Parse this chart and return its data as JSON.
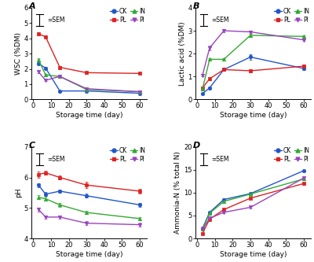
{
  "x": [
    3,
    7,
    15,
    30,
    60
  ],
  "panel_A": {
    "title": "A",
    "ylabel": "WSC (%DM)",
    "xlabel": "Storage time (day)",
    "ylim": [
      0,
      6
    ],
    "yticks": [
      0,
      1,
      2,
      3,
      4,
      5,
      6
    ],
    "CK": {
      "y": [
        2.35,
        2.05,
        0.55,
        0.55,
        0.4
      ],
      "yerr": [
        0.08,
        0.08,
        0.04,
        0.04,
        0.04
      ]
    },
    "PL": {
      "y": [
        4.3,
        4.1,
        2.1,
        1.75,
        1.7
      ],
      "yerr": [
        0.1,
        0.08,
        0.1,
        0.08,
        0.06
      ]
    },
    "IN": {
      "y": [
        2.6,
        1.6,
        1.5,
        0.65,
        0.5
      ],
      "yerr": [
        0.08,
        0.08,
        0.06,
        0.04,
        0.04
      ]
    },
    "PI": {
      "y": [
        1.8,
        1.25,
        1.5,
        0.7,
        0.5
      ],
      "yerr": [
        0.08,
        0.06,
        0.06,
        0.04,
        0.04
      ]
    }
  },
  "panel_B": {
    "title": "B",
    "ylabel": "Lactic acid (%DM)",
    "xlabel": "Storage time (day)",
    "ylim": [
      0,
      4
    ],
    "yticks": [
      0,
      1,
      2,
      3,
      4
    ],
    "CK": {
      "y": [
        0.25,
        0.5,
        1.3,
        1.85,
        1.35
      ],
      "yerr": [
        0.04,
        0.05,
        0.06,
        0.12,
        0.06
      ]
    },
    "PL": {
      "y": [
        0.5,
        0.9,
        1.3,
        1.25,
        1.45
      ],
      "yerr": [
        0.05,
        0.06,
        0.06,
        0.06,
        0.06
      ]
    },
    "IN": {
      "y": [
        0.45,
        1.75,
        1.75,
        2.8,
        2.75
      ],
      "yerr": [
        0.05,
        0.06,
        0.06,
        0.06,
        0.06
      ]
    },
    "PI": {
      "y": [
        1.05,
        2.25,
        3.0,
        2.95,
        2.6
      ],
      "yerr": [
        0.06,
        0.1,
        0.06,
        0.06,
        0.06
      ]
    }
  },
  "panel_C": {
    "title": "C",
    "ylabel": "pH",
    "xlabel": "Storage time (day)",
    "ylim": [
      4,
      7
    ],
    "yticks": [
      4,
      5,
      6,
      7
    ],
    "CK": {
      "y": [
        5.75,
        5.45,
        5.55,
        5.4,
        5.1
      ],
      "yerr": [
        0.06,
        0.06,
        0.06,
        0.06,
        0.06
      ]
    },
    "PL": {
      "y": [
        6.1,
        6.15,
        6.0,
        5.75,
        5.55
      ],
      "yerr": [
        0.1,
        0.06,
        0.06,
        0.1,
        0.08
      ]
    },
    "IN": {
      "y": [
        5.35,
        5.3,
        5.1,
        4.85,
        4.65
      ],
      "yerr": [
        0.06,
        0.06,
        0.06,
        0.06,
        0.06
      ]
    },
    "PI": {
      "y": [
        4.95,
        4.7,
        4.7,
        4.5,
        4.45
      ],
      "yerr": [
        0.06,
        0.06,
        0.06,
        0.06,
        0.06
      ]
    }
  },
  "panel_D": {
    "title": "D",
    "ylabel": "Ammonia-N (% total N)",
    "xlabel": "Storage time (day)",
    "ylim": [
      0,
      20
    ],
    "yticks": [
      0,
      5,
      10,
      15,
      20
    ],
    "CK": {
      "y": [
        2.2,
        5.7,
        8.5,
        9.8,
        14.8
      ],
      "yerr": [
        0.15,
        0.2,
        0.25,
        0.2,
        0.25
      ]
    },
    "PL": {
      "y": [
        1.1,
        4.2,
        6.3,
        8.8,
        12.0
      ],
      "yerr": [
        0.15,
        0.2,
        0.2,
        0.2,
        0.25
      ]
    },
    "IN": {
      "y": [
        2.0,
        5.5,
        8.1,
        9.7,
        13.0
      ],
      "yerr": [
        0.15,
        0.2,
        0.2,
        0.2,
        0.25
      ]
    },
    "PI": {
      "y": [
        2.0,
        4.4,
        5.7,
        6.8,
        13.2
      ],
      "yerr": [
        0.15,
        0.2,
        0.2,
        0.2,
        0.25
      ]
    }
  },
  "colors": {
    "CK": "#2255cc",
    "PL": "#dd2222",
    "IN": "#33aa33",
    "PI": "#9944bb"
  },
  "markers": {
    "CK": "o",
    "PL": "s",
    "IN": "^",
    "PI": "v"
  },
  "xticks": [
    0,
    10,
    20,
    30,
    40,
    50,
    60
  ],
  "xlim": [
    -1,
    64
  ],
  "bg_color": "#ffffff"
}
